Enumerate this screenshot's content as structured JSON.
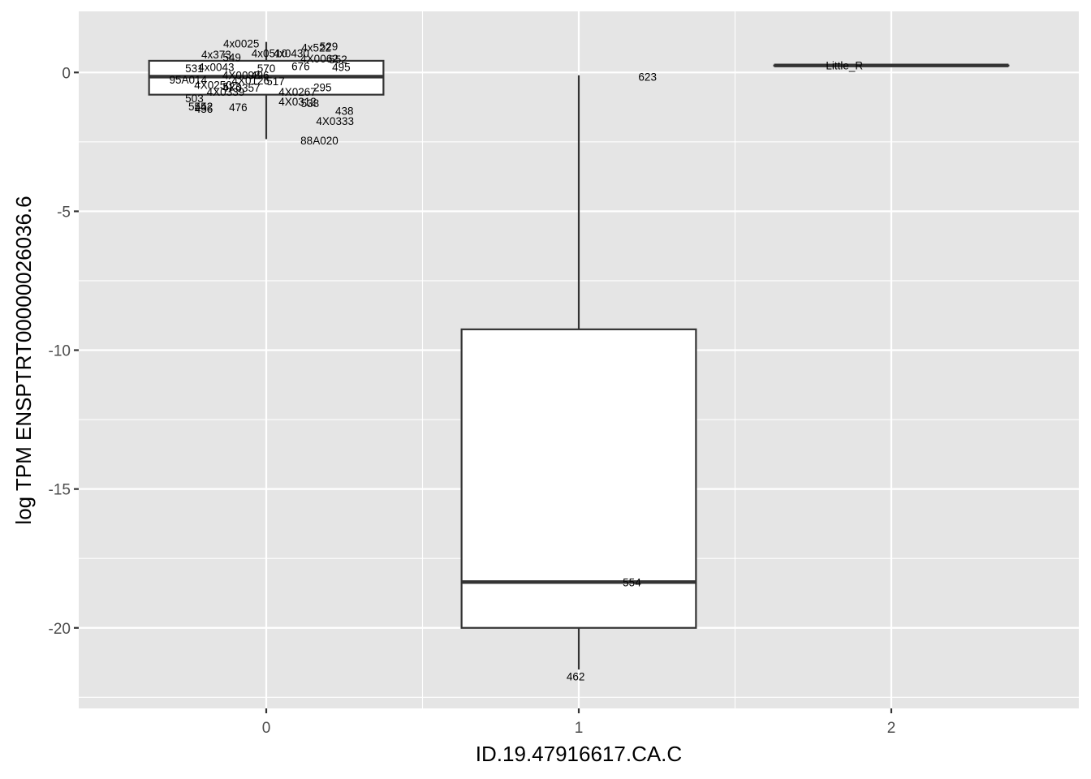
{
  "chart_data": {
    "type": "boxplot",
    "xlabel": "ID.19.47916617.CA.C",
    "ylabel": "log TPM ENSPTRT00000026036.6",
    "categories": [
      "0",
      "1",
      "2"
    ],
    "y_ticks": [
      0,
      -5,
      -10,
      -15,
      -20
    ],
    "y_tick_labels": [
      "0",
      "-5",
      "-10",
      "-15",
      "-20"
    ],
    "ylim": [
      -22.9,
      2.2
    ],
    "xlim": [
      -0.6,
      2.6
    ],
    "grid": true,
    "legend": "none",
    "colors": {
      "panel": "#e5e5e5",
      "grid": "#ffffff",
      "box_fill": "#ffffff",
      "box_line": "#333333"
    },
    "boxes": [
      {
        "category": "0",
        "whisker_low": -2.4,
        "q1": -0.8,
        "median": -0.15,
        "q3": 0.42,
        "whisker_high": 1.1
      },
      {
        "category": "1",
        "whisker_low": -21.5,
        "q1": -20.0,
        "median": -18.35,
        "q3": -9.25,
        "whisker_high": -0.1
      },
      {
        "category": "2",
        "whisker_low": 0.25,
        "q1": 0.25,
        "median": 0.25,
        "q3": 0.25,
        "whisker_high": 0.25
      }
    ],
    "point_labels": [
      {
        "x": -0.08,
        "y": 1.05,
        "text": "4x0025"
      },
      {
        "x": -0.16,
        "y": 0.65,
        "text": "4x373"
      },
      {
        "x": -0.11,
        "y": 0.55,
        "text": "549"
      },
      {
        "x": 0.01,
        "y": 0.7,
        "text": "4x0510"
      },
      {
        "x": 0.08,
        "y": 0.7,
        "text": "4x0430"
      },
      {
        "x": 0.16,
        "y": 0.9,
        "text": "4x522"
      },
      {
        "x": 0.2,
        "y": 0.95,
        "text": "529"
      },
      {
        "x": 0.17,
        "y": 0.5,
        "text": "4X0062"
      },
      {
        "x": 0.23,
        "y": 0.48,
        "text": "552"
      },
      {
        "x": -0.23,
        "y": 0.15,
        "text": "531"
      },
      {
        "x": -0.16,
        "y": 0.2,
        "text": "4x0043"
      },
      {
        "x": 0.0,
        "y": 0.15,
        "text": "570"
      },
      {
        "x": 0.11,
        "y": 0.23,
        "text": "676"
      },
      {
        "x": 0.24,
        "y": 0.2,
        "text": "495"
      },
      {
        "x": -0.25,
        "y": -0.25,
        "text": "95A014"
      },
      {
        "x": -0.08,
        "y": -0.1,
        "text": "4X0098"
      },
      {
        "x": -0.02,
        "y": -0.1,
        "text": "496"
      },
      {
        "x": -0.05,
        "y": -0.28,
        "text": "4X0126"
      },
      {
        "x": 0.03,
        "y": -0.32,
        "text": "517"
      },
      {
        "x": -0.17,
        "y": -0.45,
        "text": "4X0250"
      },
      {
        "x": -0.11,
        "y": -0.5,
        "text": "523"
      },
      {
        "x": -0.08,
        "y": -0.55,
        "text": "4X0357"
      },
      {
        "x": -0.13,
        "y": -0.7,
        "text": "4X0339"
      },
      {
        "x": 0.18,
        "y": -0.53,
        "text": "295"
      },
      {
        "x": 0.1,
        "y": -0.7,
        "text": "4X0267"
      },
      {
        "x": -0.23,
        "y": -0.92,
        "text": "503"
      },
      {
        "x": 0.1,
        "y": -1.05,
        "text": "4X0312"
      },
      {
        "x": 0.14,
        "y": -1.1,
        "text": "538"
      },
      {
        "x": -0.22,
        "y": -1.22,
        "text": "554"
      },
      {
        "x": -0.2,
        "y": -1.22,
        "text": "452"
      },
      {
        "x": -0.2,
        "y": -1.3,
        "text": "456"
      },
      {
        "x": -0.09,
        "y": -1.25,
        "text": "476"
      },
      {
        "x": 0.25,
        "y": -1.38,
        "text": "438"
      },
      {
        "x": 0.22,
        "y": -1.75,
        "text": "4X0333"
      },
      {
        "x": 0.17,
        "y": -2.45,
        "text": "88A020"
      },
      {
        "x": 1.22,
        "y": -0.15,
        "text": "623"
      },
      {
        "x": 1.17,
        "y": -18.35,
        "text": "554"
      },
      {
        "x": 0.99,
        "y": -21.75,
        "text": "462"
      },
      {
        "x": 1.85,
        "y": 0.25,
        "text": "Little_R"
      }
    ]
  }
}
